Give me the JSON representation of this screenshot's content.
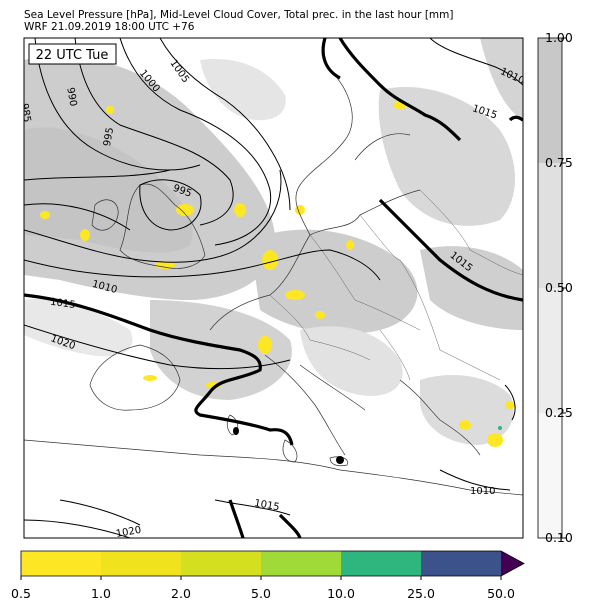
{
  "header": {
    "title_line1": "Sea Level Pressure [hPa], Mid-Level Cloud Cover, Total prec. in the last hour [mm]",
    "title_line2": "WRF 21.09.2019 18:00 UTC +76"
  },
  "map": {
    "time_label": "22 UTC Tue",
    "isobar_labels": [
      "985",
      "990",
      "995",
      "995",
      "1000",
      "1005",
      "1010",
      "1010",
      "1015",
      "1015",
      "1015",
      "1020",
      "1020",
      "1015",
      "1010"
    ]
  },
  "cloud_colorbar": {
    "ticks": [
      "1.00",
      "0.75",
      "0.50",
      "0.25",
      "0.10"
    ],
    "colors": [
      "#c8c8c8",
      "#e0e0e0",
      "#ececec",
      "#f7f7f7"
    ]
  },
  "precip_colorbar": {
    "ticks": [
      "0.5",
      "1.0",
      "2.0",
      "5.0",
      "10.0",
      "25.0",
      "50.0"
    ],
    "colors": [
      "#fde725",
      "#f0e31d",
      "#d4e01f",
      "#a0da39",
      "#2eb67e",
      "#3b528b",
      "#440154"
    ]
  }
}
